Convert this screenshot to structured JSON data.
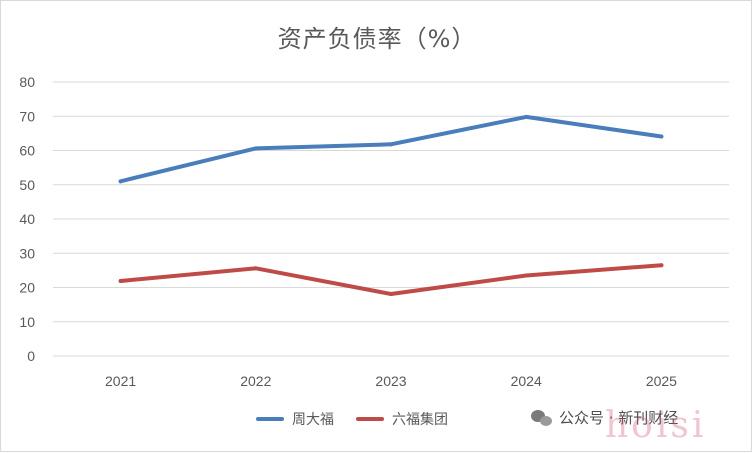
{
  "chart_data": {
    "type": "line",
    "title": "资产负债率（%）",
    "categories": [
      "2021",
      "2022",
      "2023",
      "2024",
      "2025"
    ],
    "ylim": [
      0,
      80
    ],
    "yticks": [
      0,
      10,
      20,
      30,
      40,
      50,
      60,
      70,
      80
    ],
    "grid": true,
    "legend": "bottom",
    "series": [
      {
        "name": "周大福",
        "color": "#4a7ebb",
        "values": [
          51.0,
          60.6,
          61.8,
          69.8,
          64.1
        ]
      },
      {
        "name": "六福集团",
        "color": "#be4b48",
        "values": [
          21.9,
          25.6,
          18.1,
          23.5,
          26.5
        ]
      }
    ]
  },
  "watermark": {
    "text": "公众号 · 新刊财经",
    "overlay": "hoisi",
    "icon": "wechat-icon"
  }
}
